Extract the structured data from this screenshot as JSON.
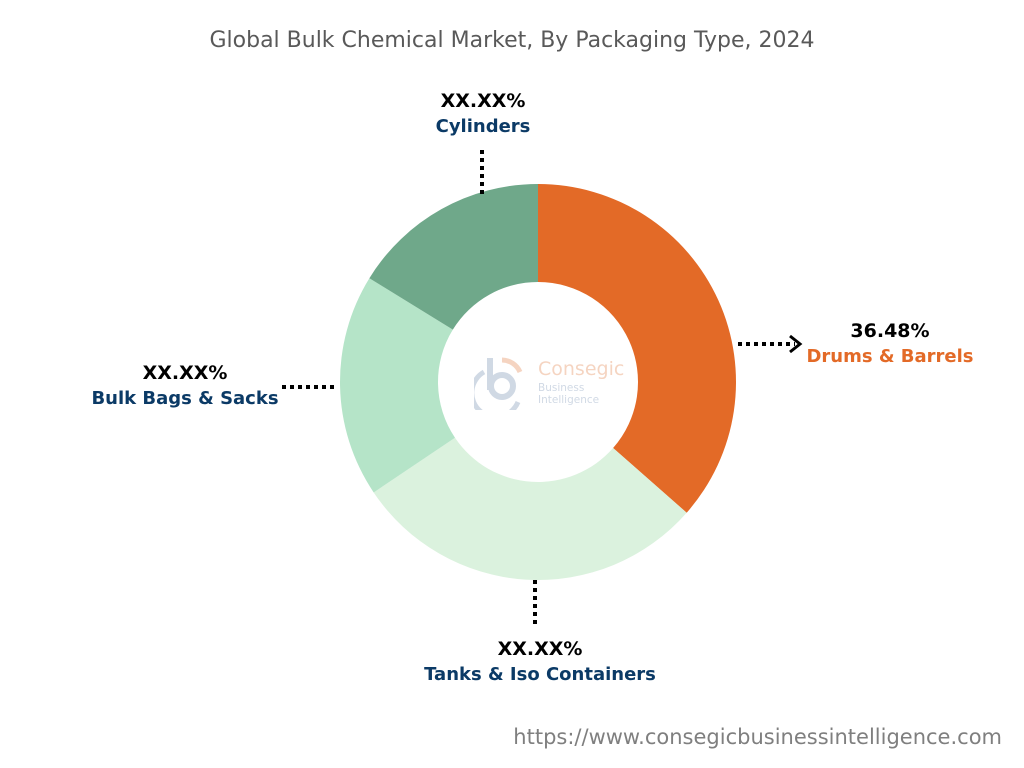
{
  "title": "Global Bulk Chemical Market, By Packaging Type, 2024",
  "url": "https://www.consegicbusinessintelligence.com",
  "logo": {
    "name": "Consegic",
    "tagline": "Business Intelligence"
  },
  "chart_data": {
    "type": "pie",
    "variant": "donut",
    "title": "Global Bulk Chemical Market, By Packaging Type, 2024",
    "categories": [
      "Drums & Barrels",
      "Tanks & Iso Containers",
      "Bulk Bags & Sacks",
      "Cylinders"
    ],
    "values": [
      36.48,
      29.1,
      18.2,
      16.22
    ],
    "labels": [
      "36.48%",
      "XX.XX%",
      "XX.XX%",
      "XX.XX%"
    ],
    "colors": [
      "#e36a27",
      "#dbf2de",
      "#b5e4c8",
      "#6fa88a"
    ],
    "label_colors": [
      "#e36a27",
      "#0b3a66",
      "#0b3a66",
      "#0b3a66"
    ],
    "legend": "none"
  }
}
